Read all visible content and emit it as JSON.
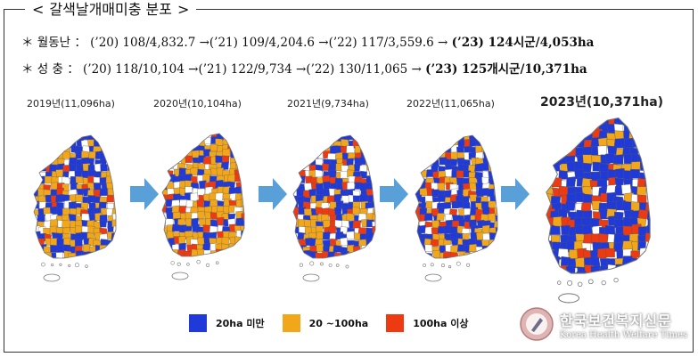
{
  "title": "갈색날개매미충 분포",
  "title_brackets": [
    "<",
    ">"
  ],
  "lines": [
    {
      "label": "＊ 월동난 ：",
      "text": "(’20) 108/4,832.7 →(’21) 109/4,204.6 →(’22) 117/3,559.6 →",
      "bold": "(’23) 124시군/4,053ha"
    },
    {
      "label": "＊ 성    충 ：",
      "text": "(’20) 118/10,104 →(’21) 122/9,734 →(’22) 130/11,065 →",
      "bold": "(’23) 125개시군/10,371ha"
    }
  ],
  "years": [
    {
      "label": "2019년(11,096ha)"
    },
    {
      "label": "2020년(10,104ha)"
    },
    {
      "label": "2021년(9,734ha)"
    },
    {
      "label": "2022년(11,065ha)"
    },
    {
      "label": "2023년(10,371ha)"
    }
  ],
  "legend": [
    {
      "label": "20ha 미만",
      "color": "#1f3ad8"
    },
    {
      "label": "20 ~100ha",
      "color": "#f2a71b"
    },
    {
      "label": "100ha 이상",
      "color": "#ee3a12"
    }
  ],
  "colors": {
    "arrow": "#5aa0d8",
    "empty_region": "#ffffff",
    "outline": "#777777"
  },
  "watermark": {
    "korean": "한국보건복지신문",
    "english": "Korea Health Welfare Times"
  }
}
